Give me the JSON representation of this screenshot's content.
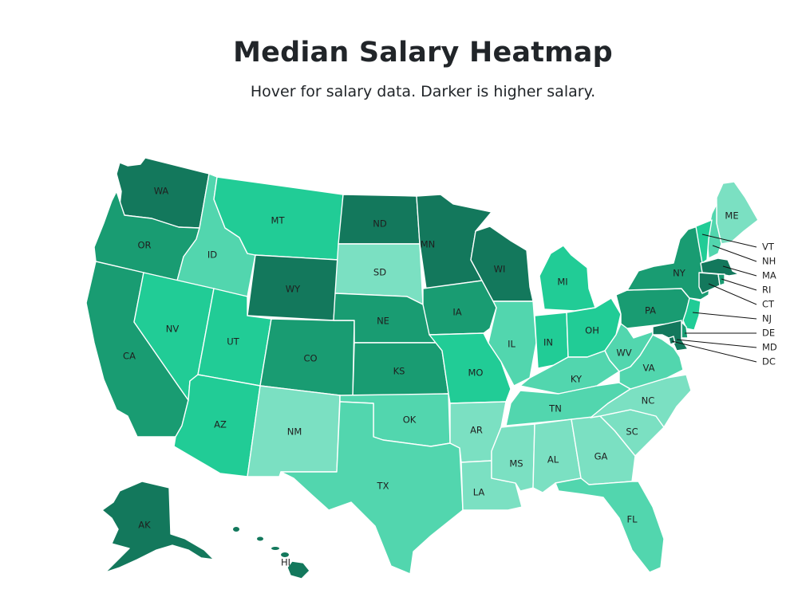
{
  "header": {
    "title": "Median Salary Heatmap",
    "subtitle": "Hover for salary data. Darker is higher salary."
  },
  "legend_scale": {
    "low_color": "#7be0c2",
    "high_color": "#13785c",
    "levels": [
      "#7be0c2",
      "#52d6ae",
      "#21cc96",
      "#199c72",
      "#13785c"
    ]
  },
  "states": [
    {
      "abbr": "WA",
      "level": 4
    },
    {
      "abbr": "OR",
      "level": 3
    },
    {
      "abbr": "CA",
      "level": 3
    },
    {
      "abbr": "ID",
      "level": 1
    },
    {
      "abbr": "NV",
      "level": 2
    },
    {
      "abbr": "MT",
      "level": 2
    },
    {
      "abbr": "WY",
      "level": 4
    },
    {
      "abbr": "UT",
      "level": 2
    },
    {
      "abbr": "AZ",
      "level": 2
    },
    {
      "abbr": "CO",
      "level": 3
    },
    {
      "abbr": "NM",
      "level": 0
    },
    {
      "abbr": "ND",
      "level": 4
    },
    {
      "abbr": "SD",
      "level": 0
    },
    {
      "abbr": "NE",
      "level": 3
    },
    {
      "abbr": "KS",
      "level": 3
    },
    {
      "abbr": "OK",
      "level": 1
    },
    {
      "abbr": "TX",
      "level": 1
    },
    {
      "abbr": "MN",
      "level": 4
    },
    {
      "abbr": "IA",
      "level": 3
    },
    {
      "abbr": "MO",
      "level": 2
    },
    {
      "abbr": "AR",
      "level": 0
    },
    {
      "abbr": "LA",
      "level": 0
    },
    {
      "abbr": "WI",
      "level": 4
    },
    {
      "abbr": "IL",
      "level": 1
    },
    {
      "abbr": "MI",
      "level": 2
    },
    {
      "abbr": "IN",
      "level": 2
    },
    {
      "abbr": "OH",
      "level": 2
    },
    {
      "abbr": "KY",
      "level": 1
    },
    {
      "abbr": "TN",
      "level": 1
    },
    {
      "abbr": "MS",
      "level": 0
    },
    {
      "abbr": "AL",
      "level": 0
    },
    {
      "abbr": "GA",
      "level": 0
    },
    {
      "abbr": "FL",
      "level": 1
    },
    {
      "abbr": "SC",
      "level": 0
    },
    {
      "abbr": "NC",
      "level": 0
    },
    {
      "abbr": "VA",
      "level": 1
    },
    {
      "abbr": "WV",
      "level": 1
    },
    {
      "abbr": "PA",
      "level": 3
    },
    {
      "abbr": "NY",
      "level": 3
    },
    {
      "abbr": "ME",
      "level": 0
    },
    {
      "abbr": "NH",
      "level": 1
    },
    {
      "abbr": "VT",
      "level": 2
    },
    {
      "abbr": "MA",
      "level": 4
    },
    {
      "abbr": "RI",
      "level": 3
    },
    {
      "abbr": "CT",
      "level": 4
    },
    {
      "abbr": "NJ",
      "level": 2
    },
    {
      "abbr": "DE",
      "level": 3
    },
    {
      "abbr": "MD",
      "level": 4
    },
    {
      "abbr": "DC",
      "level": 4
    },
    {
      "abbr": "AK",
      "level": 4
    },
    {
      "abbr": "HI",
      "level": 4
    }
  ]
}
